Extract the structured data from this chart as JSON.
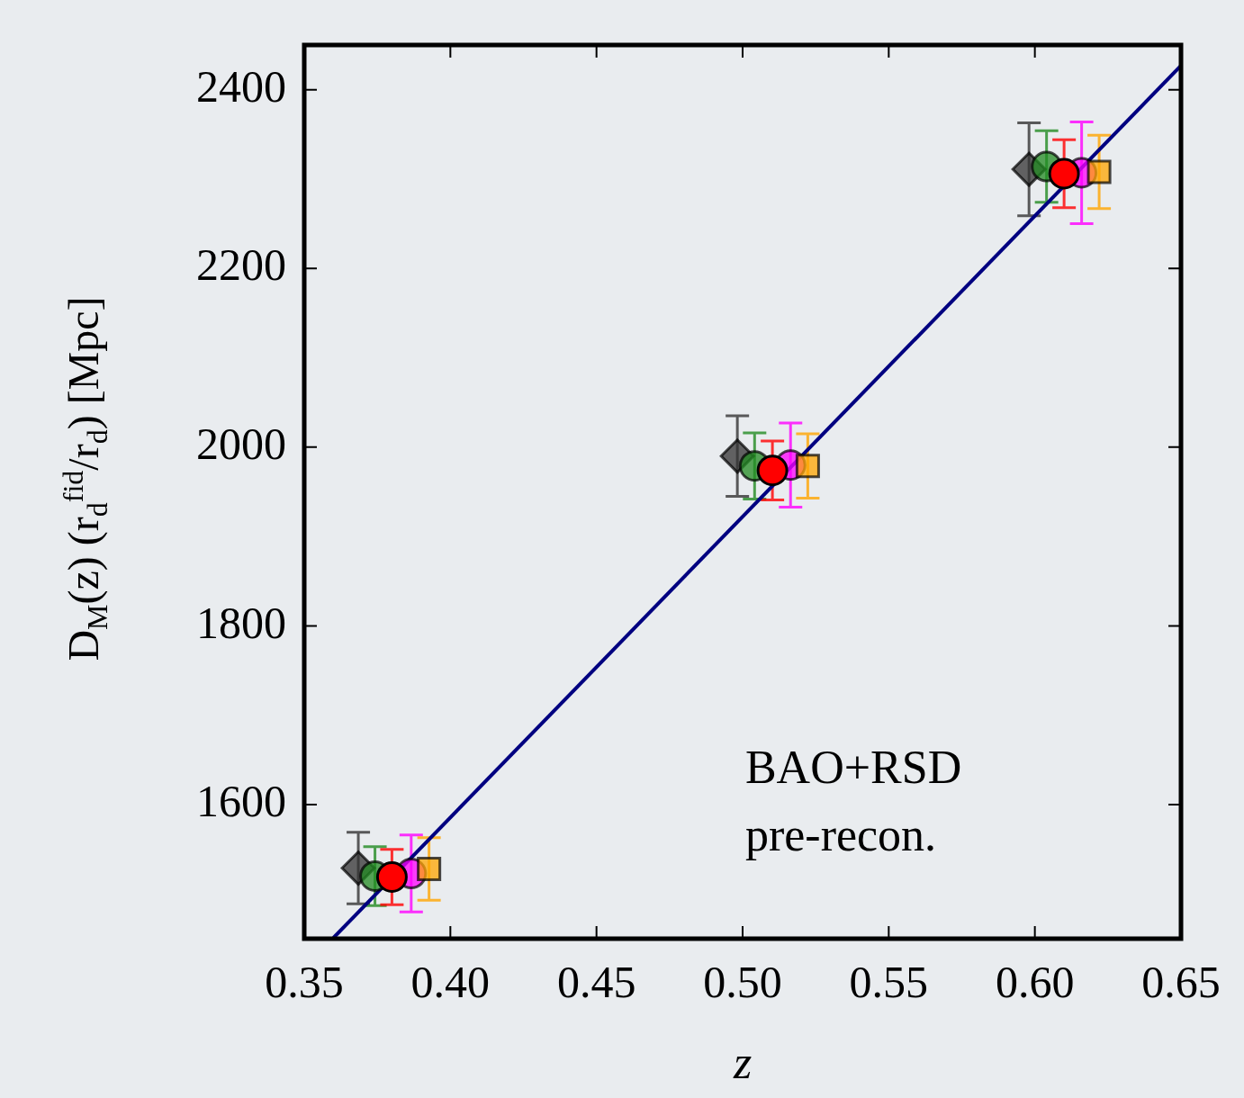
{
  "chart_data": {
    "type": "scatter",
    "xlabel": "z",
    "ylabel": "D$_{M}$(z) (r$_{d}$$^{fid}$/r$_{d}$) [Mpc]",
    "xlim": [
      0.35,
      0.65
    ],
    "ylim": [
      1450,
      2450
    ],
    "xticks": [
      0.35,
      {
        "value": 0.4,
        "label": "0.40"
      },
      0.45,
      {
        "value": 0.5,
        "label": "0.50"
      },
      0.55,
      {
        "value": 0.6,
        "label": "0.60"
      },
      0.65
    ],
    "yticks": [
      1600,
      1800,
      2000,
      2200,
      2400
    ],
    "grid": false,
    "legend": false,
    "annotations": [
      "BAO+RSD",
      "pre-recon."
    ],
    "series": [
      {
        "type": "line",
        "color": "#000080",
        "x": [
          0.36,
          0.65
        ],
        "values": [
          1451,
          2427
        ],
        "marker": "none"
      },
      {
        "color": "#333333",
        "marker": "diamond",
        "x": [
          0.3685,
          0.4982,
          0.598
        ],
        "values": [
          1529,
          1990,
          2311
        ],
        "errors": [
          40,
          45,
          52
        ]
      },
      {
        "color": "#228b22",
        "marker": "circle",
        "x": [
          0.3742,
          0.5041,
          0.604
        ],
        "values": [
          1520,
          1979,
          2314
        ],
        "errors": [
          33,
          37,
          40
        ]
      },
      {
        "color": "#ff00ff",
        "marker": "circle",
        "x": [
          0.3866,
          0.5164,
          0.616
        ],
        "values": [
          1523,
          1980,
          2307
        ],
        "errors": [
          43,
          47,
          57
        ]
      },
      {
        "color": "#ffa500",
        "marker": "square",
        "x": [
          0.3927,
          0.5223,
          0.622
        ],
        "values": [
          1528,
          1979,
          2308
        ],
        "errors": [
          35,
          36,
          41
        ]
      },
      {
        "color": "#ff0000",
        "marker": "circle",
        "x": [
          0.38,
          0.5102,
          0.61
        ],
        "values": [
          1519,
          1974,
          2306
        ],
        "errors": [
          31,
          33,
          38
        ]
      }
    ]
  }
}
